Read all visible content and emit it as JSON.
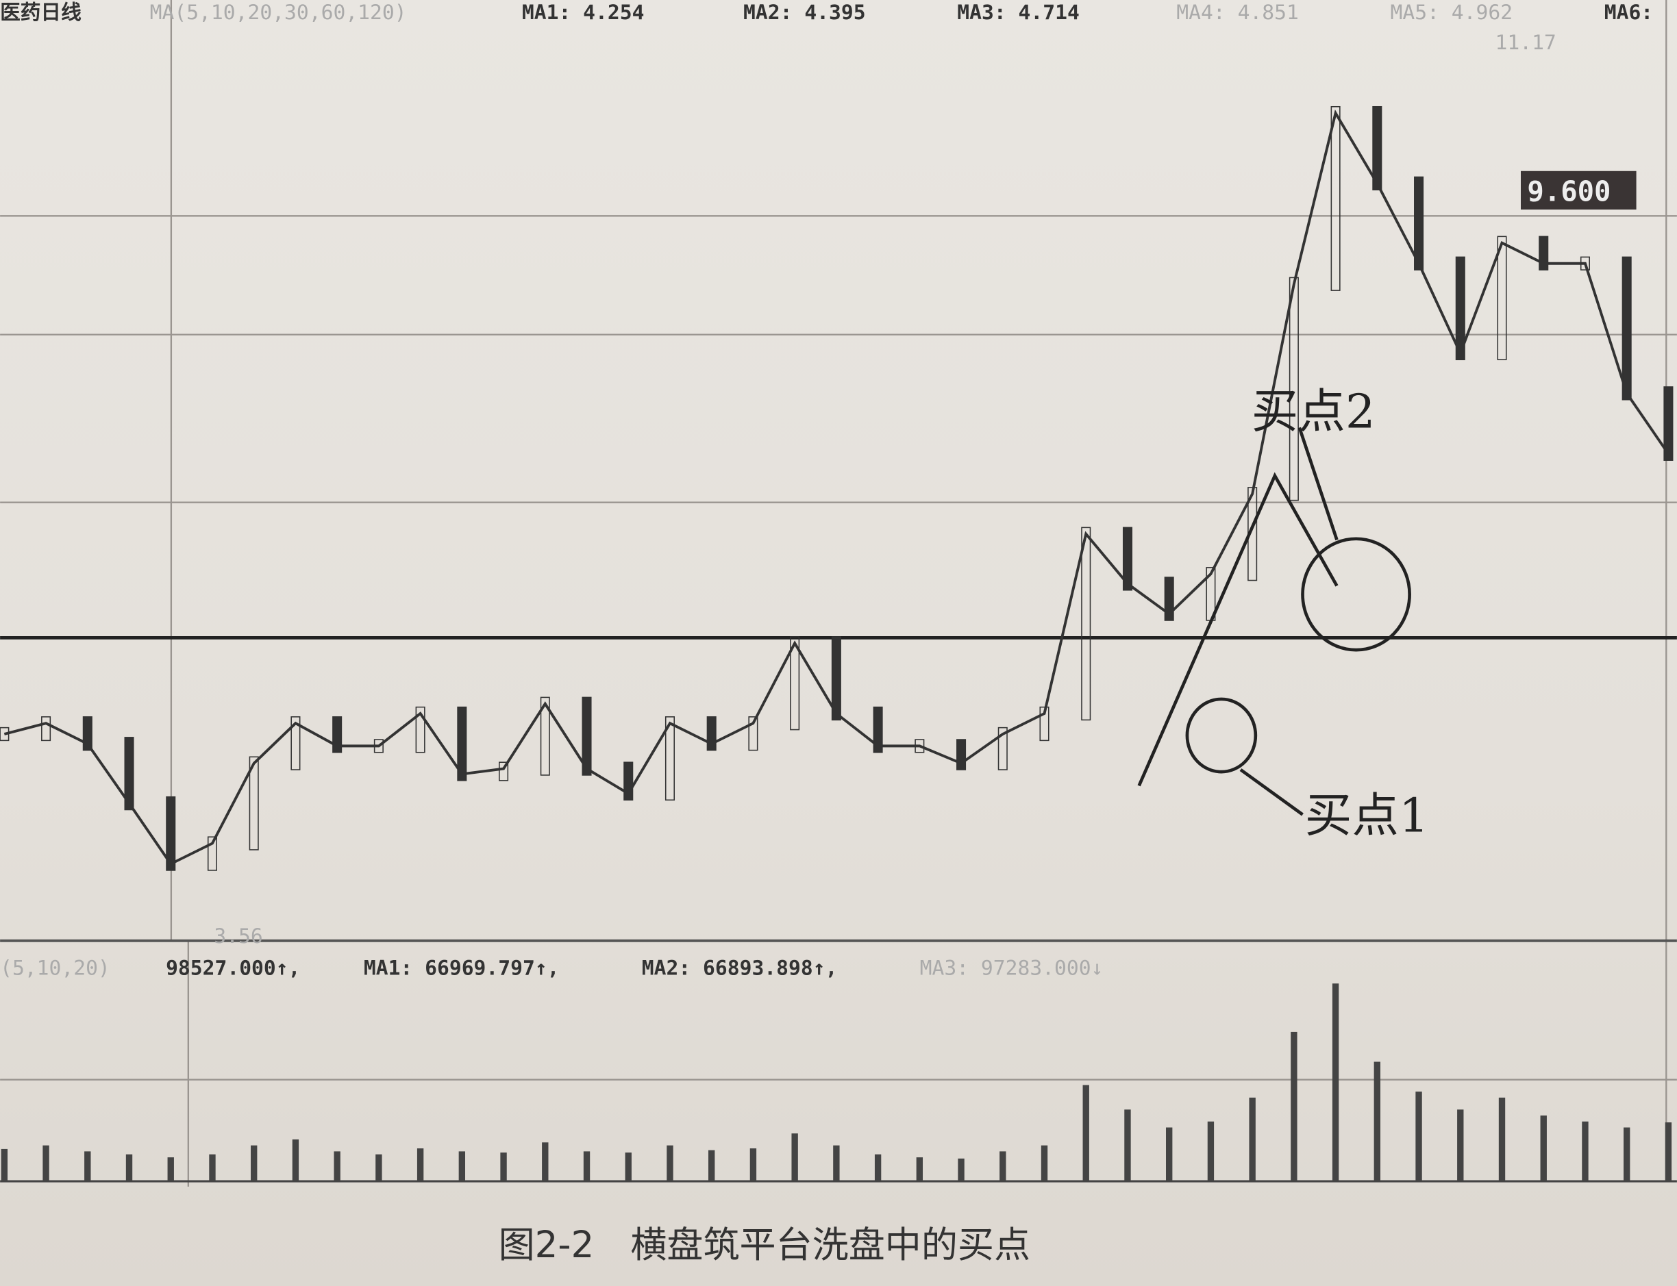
{
  "header": {
    "stock": "医药日线",
    "ma_params": "MA(5,10,20,30,60,120)",
    "ma1": "MA1: 4.254",
    "ma2": "MA2: 4.395",
    "ma3": "MA3: 4.714",
    "ma4": "MA4: 4.851",
    "ma5": "MA5: 4.962",
    "ma6": "MA6:"
  },
  "volume_header": {
    "params": "(5,10,20)",
    "value": "98527.000↑,",
    "ma1": "MA1: 66969.797↑,",
    "ma2": "MA2: 66893.898↑,",
    "ma3": "MA3: 97283.000↓"
  },
  "annotations": {
    "high": "11.17",
    "low": "3.56",
    "price_tag": "9.600",
    "buy1": "买点1",
    "buy2": "买点2"
  },
  "caption": "图2-2　横盘筑平台洗盘中的买点",
  "colors": {
    "paper": "#e6e2dc",
    "ink": "#222222",
    "tag_bg": "#3a3434"
  },
  "chart_data": {
    "type": "line",
    "title": "",
    "xlabel": "",
    "ylabel": "",
    "ylim": [
      3.2,
      11.5
    ],
    "grid": true,
    "price": [
      5.11,
      5.21,
      5.02,
      4.47,
      3.91,
      4.1,
      4.84,
      5.21,
      5.0,
      5.0,
      5.3,
      4.74,
      4.79,
      5.39,
      4.79,
      4.56,
      5.21,
      5.02,
      5.21,
      5.95,
      5.3,
      5.0,
      5.0,
      4.84,
      5.11,
      5.3,
      6.96,
      6.5,
      6.22,
      6.59,
      7.33,
      9.27,
      10.85,
      10.2,
      9.46,
      8.63,
      9.65,
      9.46,
      9.46,
      8.26,
      7.7
    ],
    "platform_level": 6.0,
    "volume": [
      54000,
      60000,
      50000,
      45000,
      40000,
      45000,
      60000,
      70000,
      50000,
      45000,
      55000,
      50000,
      48000,
      65000,
      50000,
      48000,
      60000,
      52000,
      55000,
      80000,
      60000,
      45000,
      40000,
      38000,
      50000,
      60000,
      161000,
      120000,
      90000,
      100000,
      140000,
      250000,
      331000,
      200000,
      150000,
      120000,
      140000,
      110000,
      100000,
      90000,
      98527
    ]
  }
}
